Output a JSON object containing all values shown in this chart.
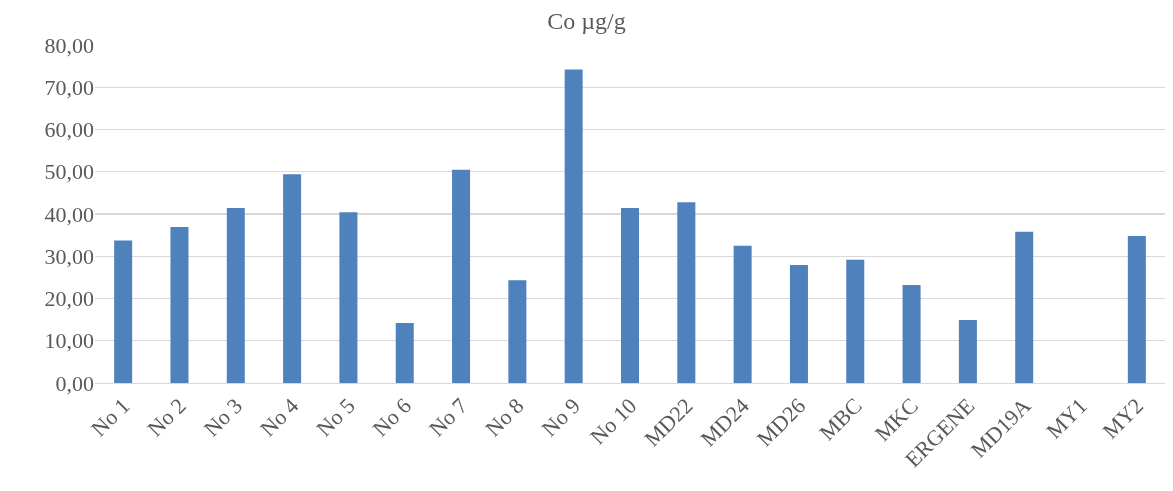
{
  "chart_data": {
    "type": "bar",
    "title": "Co µg/g",
    "categories": [
      "No 1",
      "No 2",
      "No 3",
      "No 4",
      "No 5",
      "No 6",
      "No 7",
      "No 8",
      "No 9",
      "No 10",
      "MD22",
      "MD24",
      "MD26",
      "MBC",
      "MKC",
      "ERGENE",
      "MD19A",
      "MY1",
      "MY2"
    ],
    "values": [
      33.7,
      36.9,
      41.4,
      49.4,
      40.4,
      14.2,
      50.5,
      24.3,
      74.2,
      41.4,
      42.8,
      32.5,
      27.9,
      29.2,
      23.2,
      14.9,
      35.8,
      null,
      34.8
    ],
    "color": "#4f81bd",
    "ylim": [
      0,
      80
    ],
    "yticks": [
      {
        "value": 0,
        "label": "0,00"
      },
      {
        "value": 10,
        "label": "10,00"
      },
      {
        "value": 20,
        "label": "20,00"
      },
      {
        "value": 30,
        "label": "30,00"
      },
      {
        "value": 40,
        "label": "40,00"
      },
      {
        "value": 50,
        "label": "50,00"
      },
      {
        "value": 60,
        "label": "60,00"
      },
      {
        "value": 70,
        "label": "70,00"
      },
      {
        "value": 80,
        "label": "80,00"
      }
    ],
    "grid": "y",
    "legend": false
  }
}
